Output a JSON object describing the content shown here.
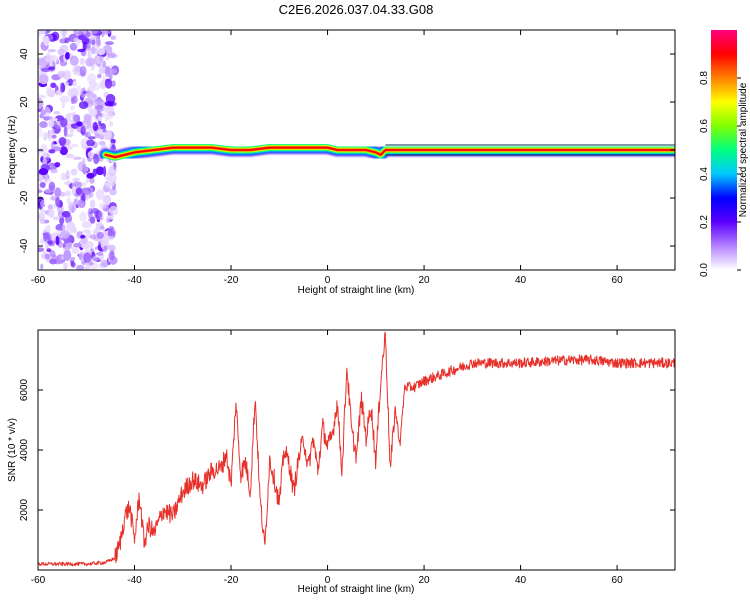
{
  "title": "C2E6.2026.037.04.33.G08",
  "chart_data": [
    {
      "type": "heatmap",
      "xlabel": "Height of straight line (km)",
      "ylabel": "Frequency (Hz)",
      "xlim": [
        -60,
        72
      ],
      "ylim": [
        -50,
        50
      ],
      "xticks": [
        -60,
        -40,
        -20,
        0,
        20,
        40,
        60
      ],
      "yticks": [
        -40,
        -20,
        0,
        20,
        40
      ],
      "noise_region_x": [
        -60,
        -44
      ],
      "ridge": {
        "x": [
          -46,
          -44,
          -42,
          -40,
          -36,
          -32,
          -28,
          -24,
          -20,
          -16,
          -12,
          -8,
          -4,
          0,
          2,
          4,
          8,
          10,
          11,
          12,
          20,
          40,
          60,
          72
        ],
        "freq": [
          -2,
          -3,
          -2,
          -1,
          0,
          1,
          1,
          1,
          0,
          0,
          1,
          1,
          1,
          1,
          0,
          0,
          0,
          -1,
          -2,
          0,
          0,
          0,
          0,
          0
        ]
      },
      "colorbar": {
        "label": "Normalized spectral amplitude",
        "range": [
          0.0,
          1.0
        ],
        "ticks": [
          0.0,
          0.2,
          0.4,
          0.6,
          0.8
        ],
        "colors": [
          "#ffffff",
          "#b482ff",
          "#5a00ff",
          "#0000ff",
          "#00c8ff",
          "#00ff80",
          "#7fff00",
          "#ffff00",
          "#ff8000",
          "#ff0000",
          "#ff0080"
        ]
      }
    },
    {
      "type": "line",
      "xlabel": "Height of straight line (km)",
      "ylabel": "SNR (10 * v/v)",
      "xlim": [
        -60,
        72
      ],
      "ylim": [
        0,
        8000
      ],
      "xticks": [
        -60,
        -40,
        -20,
        0,
        20,
        40,
        60
      ],
      "yticks": [
        2000,
        4000,
        6000
      ],
      "color": "#e8302a",
      "series": [
        {
          "name": "SNR",
          "x": [
            -60,
            -50,
            -46,
            -44,
            -43,
            -42,
            -41,
            -40,
            -39,
            -38,
            -37,
            -36,
            -34,
            -32,
            -30,
            -28,
            -26,
            -24,
            -22,
            -21,
            -20,
            -19,
            -18,
            -17,
            -16,
            -15,
            -14,
            -13,
            -12,
            -11,
            -10,
            -9,
            -8,
            -7,
            -6,
            -5,
            -4,
            -3,
            -2,
            -1,
            0,
            1,
            2,
            3,
            4,
            5,
            6,
            7,
            8,
            9,
            10,
            11,
            12,
            13,
            14,
            15,
            16,
            18,
            20,
            25,
            30,
            40,
            50,
            55,
            60,
            65,
            72
          ],
          "y": [
            200,
            200,
            250,
            400,
            900,
            1800,
            2100,
            1000,
            2500,
            900,
            1500,
            1200,
            2000,
            1800,
            2600,
            3000,
            2800,
            3300,
            3400,
            3900,
            2800,
            5600,
            3200,
            3600,
            2600,
            5800,
            2400,
            700,
            3700,
            3000,
            2200,
            4000,
            3600,
            2600,
            3700,
            4400,
            3400,
            4400,
            3300,
            4800,
            4100,
            4500,
            5600,
            3300,
            6800,
            4600,
            3800,
            5700,
            4400,
            5500,
            3600,
            6300,
            7900,
            3300,
            5400,
            4200,
            6100,
            6100,
            6300,
            6600,
            6900,
            6900,
            7000,
            7000,
            6900,
            6900,
            6900
          ]
        }
      ]
    }
  ]
}
